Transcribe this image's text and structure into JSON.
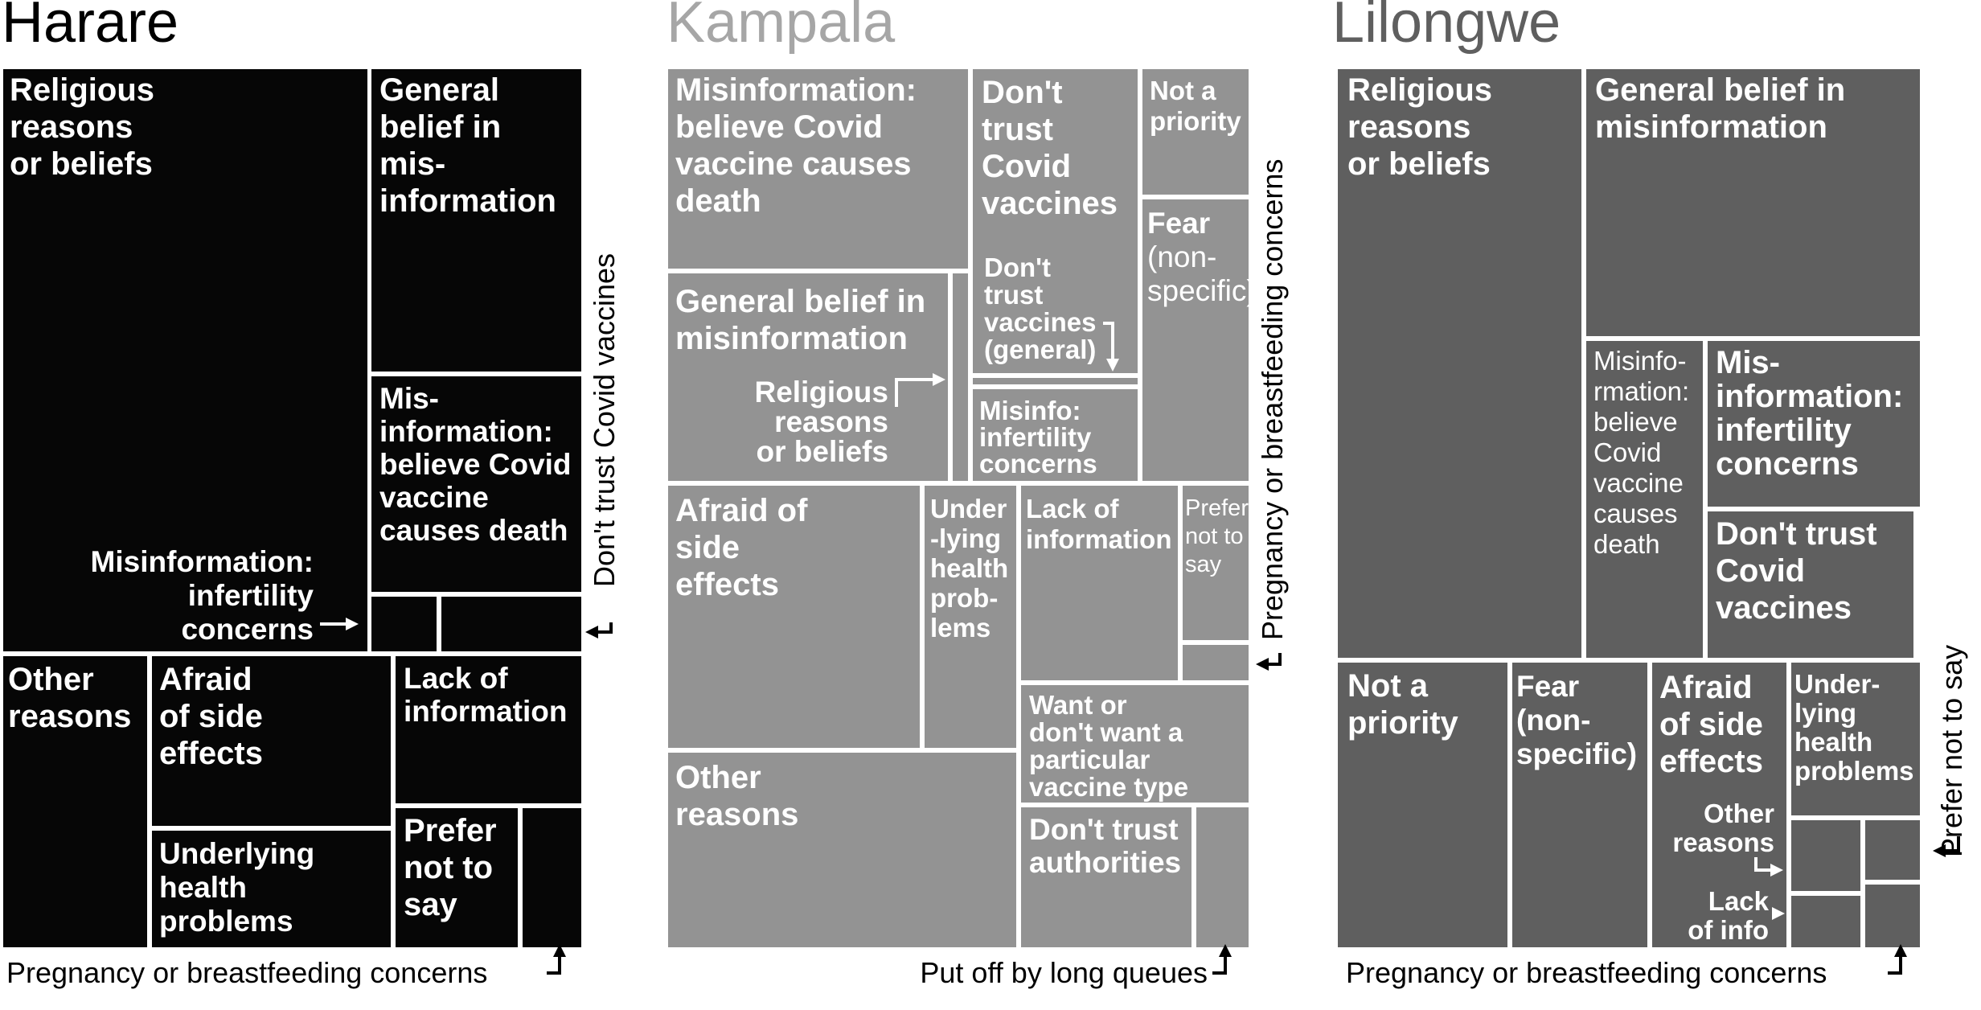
{
  "chart_data": [
    {
      "type": "treemap",
      "title": "Harare",
      "colors": {
        "fill": "#060606",
        "title": "#000000"
      },
      "cells": [
        {
          "label": "Religious reasons or beliefs"
        },
        {
          "label": "General belief in mis- information"
        },
        {
          "label": "Mis- information: believe Covid vaccine causes death"
        },
        {
          "label": "Misinformation: infertility concerns"
        },
        {
          "label": "Don't trust Covid vaccines"
        },
        {
          "label": "Other reasons"
        },
        {
          "label": "Afraid of side effects"
        },
        {
          "label": "Underlying health problems"
        },
        {
          "label": "Lack of information"
        },
        {
          "label": "Prefer not to say"
        },
        {
          "label": "Pregnancy or breastfeeding concerns"
        }
      ]
    },
    {
      "type": "treemap",
      "title": "Kampala",
      "colors": {
        "fill": "#939393",
        "title": "#a6a6a6"
      },
      "cells": [
        {
          "label": "Misinformation: believe Covid vaccine causes death"
        },
        {
          "label": "Don't trust Covid vaccines"
        },
        {
          "label": "Not a priority"
        },
        {
          "label": "Fear (non- specific)"
        },
        {
          "label": "Don't trust vaccines (general)"
        },
        {
          "label": "General belief in misinformation"
        },
        {
          "label": "Religious reasons or beliefs"
        },
        {
          "label": "Misinfo: infertility concerns"
        },
        {
          "label": "Afraid of side effects"
        },
        {
          "label": "Under -lying health prob- lems"
        },
        {
          "label": "Lack of information"
        },
        {
          "label": "Prefer not to say"
        },
        {
          "label": "Pregnancy or breastfeeding concerns"
        },
        {
          "label": "Want or don't want a particular vaccine type"
        },
        {
          "label": "Other reasons"
        },
        {
          "label": "Don't trust authorities"
        },
        {
          "label": "Put off by long queues"
        }
      ]
    },
    {
      "type": "treemap",
      "title": "Lilongwe",
      "colors": {
        "fill": "#5f5f5f",
        "title": "#5f5f5f"
      },
      "cells": [
        {
          "label": "Religious reasons or beliefs"
        },
        {
          "label": "General belief in misinformation"
        },
        {
          "label": "Misinfo- rmation: believe Covid vaccine causes death"
        },
        {
          "label": "Mis- information: infertility concerns"
        },
        {
          "label": "Don't trust Covid vaccines"
        },
        {
          "label": "Not a priority"
        },
        {
          "label": "Fear (non- specific)"
        },
        {
          "label": "Afraid of side effects"
        },
        {
          "label": "Under- lying health problems"
        },
        {
          "label": "Other reasons"
        },
        {
          "label": "Lack of info"
        },
        {
          "label": "Prefer not to say"
        },
        {
          "label": "Pregnancy or breastfeeding concerns"
        }
      ]
    }
  ]
}
